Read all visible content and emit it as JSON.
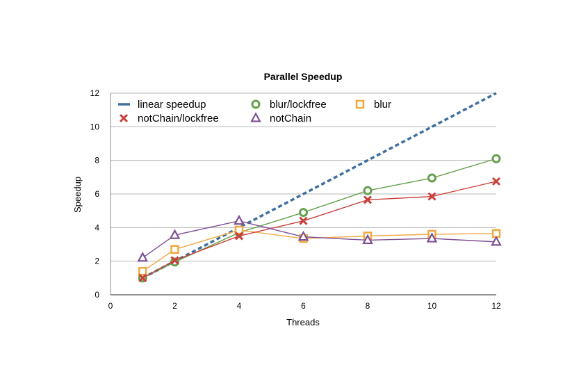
{
  "chart_data": {
    "type": "line",
    "title": "Parallel Speedup",
    "xlabel": "Threads",
    "ylabel": "Speedup",
    "xlim": [
      0,
      12
    ],
    "ylim": [
      0,
      12
    ],
    "xticks": [
      "0",
      "2",
      "4",
      "6",
      "8",
      "10",
      "12"
    ],
    "yticks": [
      "0",
      "2",
      "4",
      "6",
      "8",
      "10",
      "12"
    ],
    "grid": "horizontal",
    "legend_position": "top-left",
    "series": [
      {
        "name": "linear speedup",
        "color": "#3e6f9f",
        "marker": "none",
        "style": "dashed",
        "x": [
          1,
          12
        ],
        "y": [
          1,
          12
        ]
      },
      {
        "name": "blur/lockfree",
        "color": "#65a04c",
        "marker": "circle",
        "style": "solid",
        "x": [
          1,
          2,
          4,
          6,
          8,
          10,
          12
        ],
        "y": [
          1.0,
          1.95,
          3.7,
          4.9,
          6.2,
          6.95,
          8.1
        ]
      },
      {
        "name": "blur",
        "color": "#f0a840",
        "marker": "square",
        "style": "solid",
        "x": [
          1,
          2,
          4,
          6,
          8,
          10,
          12
        ],
        "y": [
          1.4,
          2.7,
          3.85,
          3.35,
          3.5,
          3.6,
          3.65
        ]
      },
      {
        "name": "notChain/lockfree",
        "color": "#c9403a",
        "marker": "x",
        "style": "solid",
        "x": [
          1,
          2,
          4,
          6,
          8,
          10,
          12
        ],
        "y": [
          1.0,
          2.05,
          3.5,
          4.4,
          5.65,
          5.85,
          6.75
        ]
      },
      {
        "name": "notChain",
        "color": "#7e4f94",
        "marker": "triangle",
        "style": "solid",
        "x": [
          1,
          2,
          4,
          6,
          8,
          10,
          12
        ],
        "y": [
          2.2,
          3.55,
          4.4,
          3.45,
          3.25,
          3.35,
          3.15
        ]
      }
    ]
  }
}
